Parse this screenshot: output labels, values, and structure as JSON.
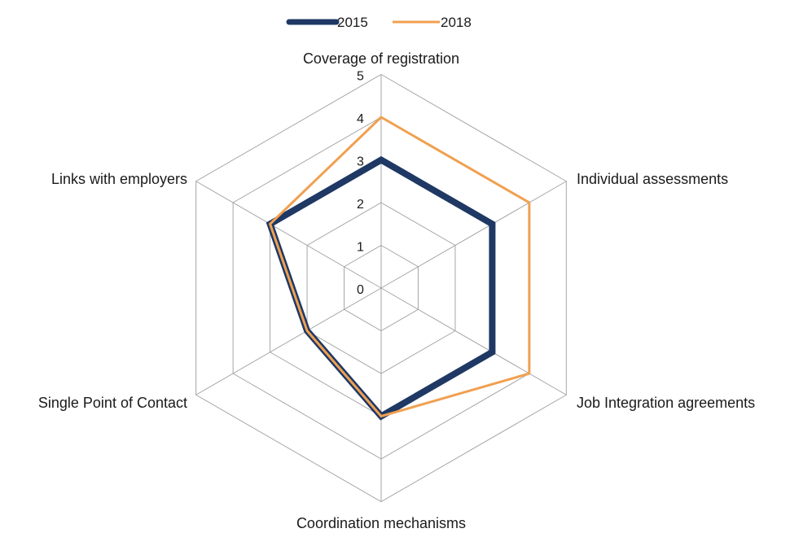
{
  "chart_data": {
    "type": "radar",
    "title": "",
    "categories": [
      "Coverage of registration",
      "Individual assessments",
      "Job Integration agreements",
      "Coordination mechanisms",
      "Single Point of Contact",
      "Links with employers"
    ],
    "rlim": [
      0,
      5
    ],
    "ticks": [
      "0",
      "1",
      "2",
      "3",
      "4",
      "5"
    ],
    "grid": true,
    "legend_position": "top-center",
    "series": [
      {
        "name": "2015",
        "values": [
          3,
          3,
          3,
          3,
          2,
          3
        ],
        "color": "#1f3864",
        "style": "thick"
      },
      {
        "name": "2018",
        "values": [
          4,
          4,
          4,
          3,
          2,
          3
        ],
        "color": "#f0a050",
        "style": "thin"
      }
    ]
  }
}
